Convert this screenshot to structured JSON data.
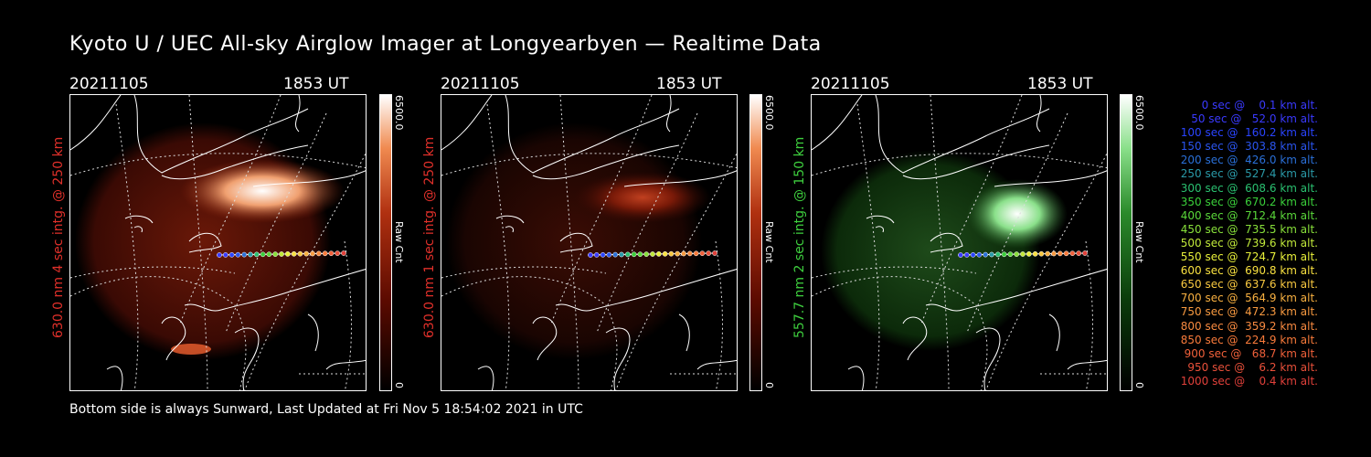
{
  "title": "Kyoto U / UEC All-sky Airglow Imager at Longyearbyen — Realtime Data",
  "footer": "Bottom side is always Sunward, Last Updated at Fri Nov  5 18:54:02 2021 in UTC",
  "panels": [
    {
      "date": "20211105",
      "time": "1853 UT",
      "label": "630.0 nm 4 sec intg. @ 250 km",
      "label_color": "#e0302a",
      "cbar_top": "6500.0",
      "cbar_unit": "Raw Cnt",
      "cbar_bottom": "0",
      "cbar_color": "#c0301a"
    },
    {
      "date": "20211105",
      "time": "1853 UT",
      "label": "630.0 nm 1 sec intg. @ 250 km",
      "label_color": "#e0302a",
      "cbar_top": "6500.0",
      "cbar_unit": "Raw Cnt",
      "cbar_bottom": "0",
      "cbar_color": "#c0301a"
    },
    {
      "date": "20211105",
      "time": "1853 UT",
      "label": "557.7 nm 2 sec intg. @ 150 km",
      "label_color": "#3ecf3e",
      "cbar_top": "6500.0",
      "cbar_unit": "Raw Cnt",
      "cbar_bottom": "0",
      "cbar_color": "#2a9a2a"
    }
  ],
  "legend": [
    {
      "text": "   0 sec @    0.1 km alt.",
      "color": "#3a3aff"
    },
    {
      "text": "  50 sec @   52.0 km alt.",
      "color": "#3a3aff"
    },
    {
      "text": " 100 sec @  160.2 km alt.",
      "color": "#2a44ff"
    },
    {
      "text": " 150 sec @  303.8 km alt.",
      "color": "#2a55f0"
    },
    {
      "text": " 200 sec @  426.0 km alt.",
      "color": "#2a70d8"
    },
    {
      "text": " 250 sec @  527.4 km alt.",
      "color": "#2a9aa8"
    },
    {
      "text": " 300 sec @  608.6 km alt.",
      "color": "#2ac070"
    },
    {
      "text": " 350 sec @  670.2 km alt.",
      "color": "#3ad03a"
    },
    {
      "text": " 400 sec @  712.4 km alt.",
      "color": "#5ad83a"
    },
    {
      "text": " 450 sec @  735.5 km alt.",
      "color": "#88e03a"
    },
    {
      "text": " 500 sec @  739.6 km alt.",
      "color": "#c0e83a"
    },
    {
      "text": " 550 sec @  724.7 km alt.",
      "color": "#e8f03a"
    },
    {
      "text": " 600 sec @  690.8 km alt.",
      "color": "#f8e040"
    },
    {
      "text": " 650 sec @  637.6 km alt.",
      "color": "#f8c840"
    },
    {
      "text": " 700 sec @  564.9 km alt.",
      "color": "#f8b040"
    },
    {
      "text": " 750 sec @  472.3 km alt.",
      "color": "#f89a40"
    },
    {
      "text": " 800 sec @  359.2 km alt.",
      "color": "#f88a40"
    },
    {
      "text": " 850 sec @  224.9 km alt.",
      "color": "#f87a3a"
    },
    {
      "text": " 900 sec @   68.7 km alt.",
      "color": "#f0603a"
    },
    {
      "text": " 950 sec @    6.2 km alt.",
      "color": "#e8503a"
    },
    {
      "text": "1000 sec @    0.4 km alt.",
      "color": "#e0403a"
    }
  ]
}
